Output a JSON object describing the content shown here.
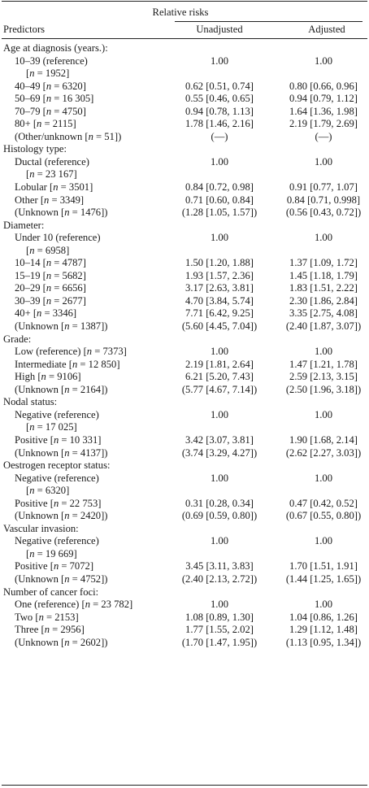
{
  "header": {
    "group": "Relative risks",
    "predictors": "Predictors",
    "unadjusted": "Unadjusted",
    "adjusted": "Adjusted"
  },
  "rows": [
    {
      "kind": "sect",
      "label": "Age at diagnosis (years.):",
      "u": "",
      "a": ""
    },
    {
      "kind": "ind",
      "label": "10–39 (reference)",
      "u": "1.00",
      "a": "1.00"
    },
    {
      "kind": "cont",
      "label": "[n = 1952]",
      "u": "",
      "a": ""
    },
    {
      "kind": "ind",
      "label": "40–49 [n = 6320]",
      "u": "0.62 [0.51, 0.74]",
      "a": "0.80 [0.66, 0.96]"
    },
    {
      "kind": "ind",
      "label": "50–69 [n = 16 305]",
      "u": "0.55 [0.46, 0.65]",
      "a": "0.94 [0.79, 1.12]"
    },
    {
      "kind": "ind",
      "label": "70–79 [n = 4750]",
      "u": "0.94 [0.78, 1.13]",
      "a": "1.64 [1.36, 1.98]"
    },
    {
      "kind": "ind",
      "label": "80+ [n = 2115]",
      "u": "1.78 [1.46, 2.16]",
      "a": "2.19 [1.79, 2.69]"
    },
    {
      "kind": "ind",
      "label": "(Other/unknown [n = 51])",
      "u": "(—)",
      "a": "(—)"
    },
    {
      "kind": "sect",
      "label": "Histology type:",
      "u": "",
      "a": ""
    },
    {
      "kind": "ind",
      "label": "Ductal (reference)",
      "u": "1.00",
      "a": "1.00"
    },
    {
      "kind": "cont",
      "label": "[n = 23 167]",
      "u": "",
      "a": ""
    },
    {
      "kind": "ind",
      "label": "Lobular [n = 3501]",
      "u": "0.84 [0.72, 0.98]",
      "a": "0.91 [0.77, 1.07]"
    },
    {
      "kind": "ind",
      "label": "Other [n = 3349]",
      "u": "0.71 [0.60, 0.84]",
      "a": "0.84 [0.71, 0.998]"
    },
    {
      "kind": "ind",
      "label": "(Unknown [n = 1476])",
      "u": "(1.28 [1.05, 1.57])",
      "a": "(0.56 [0.43, 0.72])"
    },
    {
      "kind": "sect",
      "label": "Diameter:",
      "u": "",
      "a": ""
    },
    {
      "kind": "ind",
      "label": "Under 10 (reference)",
      "u": "1.00",
      "a": "1.00"
    },
    {
      "kind": "cont",
      "label": "[n = 6958]",
      "u": "",
      "a": ""
    },
    {
      "kind": "ind",
      "label": "10–14 [n = 4787]",
      "u": "1.50 [1.20, 1.88]",
      "a": "1.37 [1.09, 1.72]"
    },
    {
      "kind": "ind",
      "label": "15–19 [n = 5682]",
      "u": "1.93 [1.57, 2.36]",
      "a": "1.45 [1.18, 1.79]"
    },
    {
      "kind": "ind",
      "label": "20–29 [n = 6656]",
      "u": "3.17 [2.63, 3.81]",
      "a": "1.83 [1.51, 2.22]"
    },
    {
      "kind": "ind",
      "label": "30–39 [n = 2677]",
      "u": "4.70 [3.84, 5.74]",
      "a": "2.30 [1.86, 2.84]"
    },
    {
      "kind": "ind",
      "label": "40+ [n = 3346]",
      "u": "7.71 [6.42, 9.25]",
      "a": "3.35 [2.75, 4.08]"
    },
    {
      "kind": "ind",
      "label": "(Unknown [n = 1387])",
      "u": "(5.60 [4.45, 7.04])",
      "a": "(2.40 [1.87, 3.07])"
    },
    {
      "kind": "sect",
      "label": "Grade:",
      "u": "",
      "a": ""
    },
    {
      "kind": "ind",
      "label": "Low (reference) [n = 7373]",
      "u": "1.00",
      "a": "1.00"
    },
    {
      "kind": "ind",
      "label": "Intermediate [n = 12 850]",
      "u": "2.19 [1.81, 2.64]",
      "a": "1.47 [1.21, 1.78]"
    },
    {
      "kind": "ind",
      "label": "High [n = 9106]",
      "u": "6.21 [5.20, 7.43]",
      "a": "2.59 [2.13, 3.15]"
    },
    {
      "kind": "ind",
      "label": "(Unknown [n = 2164])",
      "u": "(5.77 [4.67, 7.14])",
      "a": "(2.50 [1.96, 3.18])"
    },
    {
      "kind": "sect",
      "label": "Nodal status:",
      "u": "",
      "a": ""
    },
    {
      "kind": "ind",
      "label": "Negative (reference)",
      "u": "1.00",
      "a": "1.00"
    },
    {
      "kind": "cont",
      "label": "[n = 17 025]",
      "u": "",
      "a": ""
    },
    {
      "kind": "ind",
      "label": "Positive [n = 10 331]",
      "u": "3.42 [3.07, 3.81]",
      "a": "1.90 [1.68, 2.14]"
    },
    {
      "kind": "ind",
      "label": "(Unknown [n = 4137])",
      "u": "(3.74 [3.29, 4.27])",
      "a": "(2.62 [2.27, 3.03])"
    },
    {
      "kind": "sect",
      "label": "Oestrogen receptor status:",
      "u": "",
      "a": ""
    },
    {
      "kind": "ind",
      "label": "Negative (reference)",
      "u": "1.00",
      "a": "1.00"
    },
    {
      "kind": "cont",
      "label": "[n = 6320]",
      "u": "",
      "a": ""
    },
    {
      "kind": "ind",
      "label": "Positive [n = 22 753]",
      "u": "0.31 [0.28, 0.34]",
      "a": "0.47 [0.42, 0.52]"
    },
    {
      "kind": "ind",
      "label": "(Unknown [n = 2420])",
      "u": "(0.69 [0.59, 0.80])",
      "a": "(0.67 [0.55, 0.80])"
    },
    {
      "kind": "sect",
      "label": "Vascular invasion:",
      "u": "",
      "a": ""
    },
    {
      "kind": "ind",
      "label": "Negative (reference)",
      "u": "1.00",
      "a": "1.00"
    },
    {
      "kind": "cont",
      "label": "[n = 19 669]",
      "u": "",
      "a": ""
    },
    {
      "kind": "ind",
      "label": "Positive [n = 7072]",
      "u": "3.45 [3.11, 3.83]",
      "a": "1.70 [1.51, 1.91]"
    },
    {
      "kind": "ind",
      "label": "(Unknown [n = 4752])",
      "u": "(2.40 [2.13, 2.72])",
      "a": "(1.44 [1.25, 1.65])"
    },
    {
      "kind": "sect",
      "label": "Number of cancer foci:",
      "u": "",
      "a": ""
    },
    {
      "kind": "ind",
      "label": "One (reference) [n = 23 782]",
      "u": "1.00",
      "a": "1.00"
    },
    {
      "kind": "ind",
      "label": "Two [n = 2153]",
      "u": "1.08 [0.89, 1.30]",
      "a": "1.04 [0.86, 1.26]"
    },
    {
      "kind": "ind",
      "label": "Three [n = 2956]",
      "u": "1.77 [1.55, 2.02]",
      "a": "1.29 [1.12, 1.48]"
    },
    {
      "kind": "ind",
      "label": "(Unknown [n = 2602])",
      "u": "(1.70 [1.47, 1.95])",
      "a": "(1.13 [0.95, 1.34])"
    }
  ]
}
